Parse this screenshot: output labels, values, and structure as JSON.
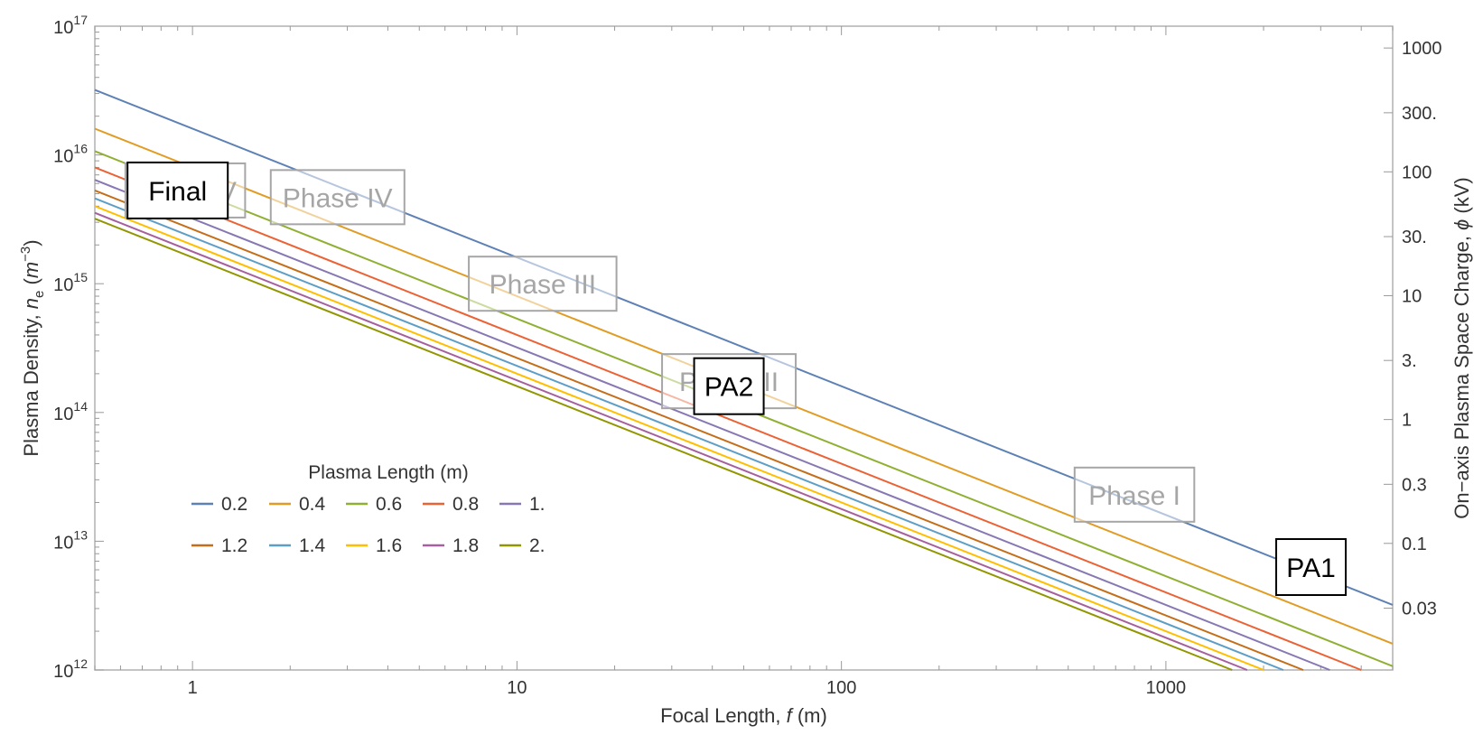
{
  "chart_data": {
    "type": "line",
    "x_scale": "log",
    "y_scale": "log",
    "xlim": [
      0.5,
      5000
    ],
    "ylim": [
      1000000000000.0,
      1e+17
    ],
    "xlabel_prefix": "Focal Length, ",
    "xlabel_var": "f",
    "xlabel_suffix": " (m)",
    "ylabel_prefix": "Plasma Density, ",
    "ylabel_var": "n",
    "ylabel_sub": "e",
    "ylabel_mid": " (",
    "ylabel_unitvar": "m",
    "ylabel_exp": "−3",
    "ylabel_end": ")",
    "y2label_prefix": "On−axis Plasma Space Charge, ",
    "y2label_var": "ϕ",
    "y2label_suffix": " (kV)",
    "x_ticks": [
      {
        "value": 1,
        "label": "1"
      },
      {
        "value": 10,
        "label": "10"
      },
      {
        "value": 100,
        "label": "100"
      },
      {
        "value": 1000,
        "label": "1000"
      }
    ],
    "y_ticks": [
      {
        "value": 1000000000000.0,
        "base": "10",
        "exp": "12"
      },
      {
        "value": 10000000000000.0,
        "base": "10",
        "exp": "13"
      },
      {
        "value": 100000000000000.0,
        "base": "10",
        "exp": "14"
      },
      {
        "value": 1000000000000000.0,
        "base": "10",
        "exp": "15"
      },
      {
        "value": 1e+16,
        "base": "10",
        "exp": "16"
      },
      {
        "value": 1e+17,
        "base": "10",
        "exp": "17"
      }
    ],
    "y2_ticks": [
      {
        "value": 0.03,
        "label": "0.03"
      },
      {
        "value": 0.1,
        "label": "0.1"
      },
      {
        "value": 0.3,
        "label": "0.3"
      },
      {
        "value": 1,
        "label": "1"
      },
      {
        "value": 3,
        "label": "3."
      },
      {
        "value": 10,
        "label": "10"
      },
      {
        "value": 30,
        "label": "30."
      },
      {
        "value": 100,
        "label": "100"
      },
      {
        "value": 300,
        "label": "300."
      },
      {
        "value": 1000,
        "label": "1000"
      }
    ],
    "y2_range_kV": [
      0.0095,
      1500
    ],
    "legend_title": "Plasma Length (m)",
    "legend_position": "lower-left",
    "series": [
      {
        "name": "0.2",
        "color": "#5e81b5",
        "points": [
          [
            0.5,
            3.2e+16
          ],
          [
            5000,
            3200000000000.0
          ]
        ]
      },
      {
        "name": "0.4",
        "color": "#e19c24",
        "points": [
          [
            0.5,
            1.6e+16
          ],
          [
            5000,
            1600000000000.0
          ]
        ]
      },
      {
        "name": "0.6",
        "color": "#8fb032",
        "points": [
          [
            0.5,
            1.07e+16
          ],
          [
            5000,
            1070000000000.0
          ]
        ]
      },
      {
        "name": "0.8",
        "color": "#eb6235",
        "points": [
          [
            0.5,
            8000000000000000.0
          ],
          [
            4000,
            1000000000000.0
          ]
        ]
      },
      {
        "name": "1.",
        "color": "#8778b3",
        "points": [
          [
            0.5,
            6400000000000000.0
          ],
          [
            3200,
            1000000000000.0
          ]
        ]
      },
      {
        "name": "1.2",
        "color": "#c56e1a",
        "points": [
          [
            0.5,
            5300000000000000.0
          ],
          [
            2650,
            1000000000000.0
          ]
        ]
      },
      {
        "name": "1.4",
        "color": "#5d9ec7",
        "points": [
          [
            0.5,
            4600000000000000.0
          ],
          [
            2300,
            1000000000000.0
          ]
        ]
      },
      {
        "name": "1.6",
        "color": "#ffbf00",
        "points": [
          [
            0.5,
            4000000000000000.0
          ],
          [
            2000,
            1000000000000.0
          ]
        ]
      },
      {
        "name": "1.8",
        "color": "#a5609d",
        "points": [
          [
            0.5,
            3550000000000000.0
          ],
          [
            1780,
            1000000000000.0
          ]
        ]
      },
      {
        "name": "2.",
        "color": "#929600",
        "points": [
          [
            0.5,
            3200000000000000.0
          ],
          [
            1600,
            1000000000000.0
          ]
        ]
      }
    ],
    "annotations": [
      {
        "text": "Phase I",
        "kind": "phase",
        "x": 800,
        "y": 23000000000000.0
      },
      {
        "text": "Phase II",
        "kind": "phase",
        "x": 45,
        "y": 175000000000000.0
      },
      {
        "text": "Phase III",
        "kind": "phase",
        "x": 12,
        "y": 1000000000000000.0
      },
      {
        "text": "Phase IV",
        "kind": "phase",
        "x": 2.8,
        "y": 4700000000000000.0
      },
      {
        "text": "Phase V",
        "kind": "phase",
        "x": 0.95,
        "y": 5300000000000000.0
      },
      {
        "text": "Final",
        "kind": "label",
        "x": 0.9,
        "y": 5300000000000000.0
      },
      {
        "text": "PA2",
        "kind": "label",
        "x": 45,
        "y": 160000000000000.0
      },
      {
        "text": "PA1",
        "kind": "label",
        "x": 2800,
        "y": 6300000000000.0
      }
    ],
    "marker": {
      "name": "red-arrow",
      "color": "#e8171a",
      "x": 2800,
      "y": 6300000000000.0
    }
  }
}
